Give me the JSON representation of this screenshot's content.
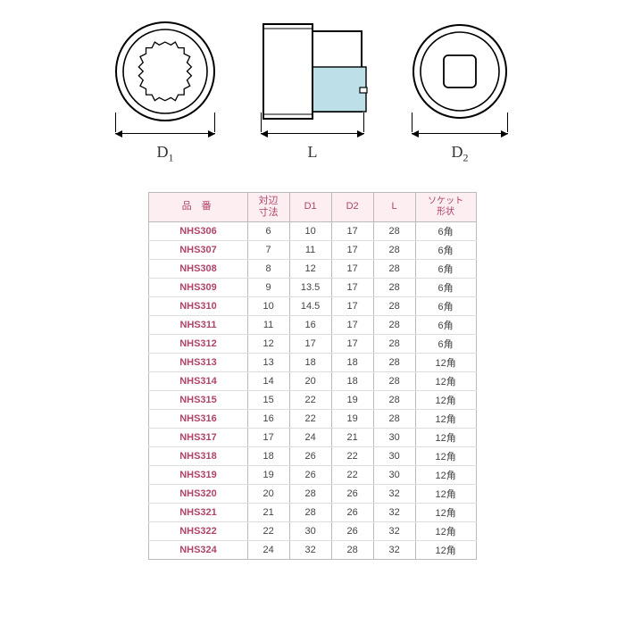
{
  "diagram": {
    "labels": {
      "d1": "D",
      "d1sub": "1",
      "l": "L",
      "d2": "D",
      "d2sub": "2"
    },
    "colors": {
      "stroke": "#000000",
      "fill_highlight": "#bcdfe8",
      "fill_white": "#ffffff"
    },
    "circle_radius": 55,
    "side_width": 110,
    "dim_width_circle": 112,
    "dim_width_side": 116
  },
  "table": {
    "headers": {
      "pn": "品番",
      "af": "対辺\n寸法",
      "d1": "D1",
      "d2": "D2",
      "l": "L",
      "shape": "ソケット\n形状"
    },
    "col_widths": {
      "pn": 90,
      "small": 34,
      "shape": 55
    },
    "header_bg": "#fdeef2",
    "header_fg": "#b0446a",
    "border_color": "#bbbbbb",
    "row_border": "#dddddd",
    "cell_fg": "#444444",
    "fontsize": 11,
    "rows": [
      {
        "pn": "NHS306",
        "af": "6",
        "d1": "10",
        "d2": "17",
        "l": "28",
        "shape": "6角"
      },
      {
        "pn": "NHS307",
        "af": "7",
        "d1": "11",
        "d2": "17",
        "l": "28",
        "shape": "6角"
      },
      {
        "pn": "NHS308",
        "af": "8",
        "d1": "12",
        "d2": "17",
        "l": "28",
        "shape": "6角"
      },
      {
        "pn": "NHS309",
        "af": "9",
        "d1": "13.5",
        "d2": "17",
        "l": "28",
        "shape": "6角"
      },
      {
        "pn": "NHS310",
        "af": "10",
        "d1": "14.5",
        "d2": "17",
        "l": "28",
        "shape": "6角"
      },
      {
        "pn": "NHS311",
        "af": "11",
        "d1": "16",
        "d2": "17",
        "l": "28",
        "shape": "6角"
      },
      {
        "pn": "NHS312",
        "af": "12",
        "d1": "17",
        "d2": "17",
        "l": "28",
        "shape": "6角"
      },
      {
        "pn": "NHS313",
        "af": "13",
        "d1": "18",
        "d2": "18",
        "l": "28",
        "shape": "12角"
      },
      {
        "pn": "NHS314",
        "af": "14",
        "d1": "20",
        "d2": "18",
        "l": "28",
        "shape": "12角"
      },
      {
        "pn": "NHS315",
        "af": "15",
        "d1": "22",
        "d2": "19",
        "l": "28",
        "shape": "12角"
      },
      {
        "pn": "NHS316",
        "af": "16",
        "d1": "22",
        "d2": "19",
        "l": "28",
        "shape": "12角"
      },
      {
        "pn": "NHS317",
        "af": "17",
        "d1": "24",
        "d2": "21",
        "l": "30",
        "shape": "12角"
      },
      {
        "pn": "NHS318",
        "af": "18",
        "d1": "26",
        "d2": "22",
        "l": "30",
        "shape": "12角"
      },
      {
        "pn": "NHS319",
        "af": "19",
        "d1": "26",
        "d2": "22",
        "l": "30",
        "shape": "12角"
      },
      {
        "pn": "NHS320",
        "af": "20",
        "d1": "28",
        "d2": "26",
        "l": "32",
        "shape": "12角"
      },
      {
        "pn": "NHS321",
        "af": "21",
        "d1": "28",
        "d2": "26",
        "l": "32",
        "shape": "12角"
      },
      {
        "pn": "NHS322",
        "af": "22",
        "d1": "30",
        "d2": "26",
        "l": "32",
        "shape": "12角"
      },
      {
        "pn": "NHS324",
        "af": "24",
        "d1": "32",
        "d2": "28",
        "l": "32",
        "shape": "12角"
      }
    ]
  }
}
